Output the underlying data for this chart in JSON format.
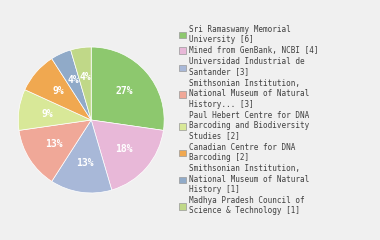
{
  "legend_labels": [
    "Sri Ramaswamy Memorial\nUniversity [6]",
    "Mined from GenBank, NCBI [4]",
    "Universidad Industrial de\nSantander [3]",
    "Smithsonian Institution,\nNational Museum of Natural\nHistory... [3]",
    "Paul Hebert Centre for DNA\nBarcoding and Biodiversity\nStudies [2]",
    "Canadian Centre for DNA\nBarcoding [2]",
    "Smithsonian Institution,\nNational Museum of Natural\nHistory [1]",
    "Madhya Pradesh Council of\nScience & Technology [1]"
  ],
  "values": [
    6,
    4,
    3,
    3,
    2,
    2,
    1,
    1
  ],
  "colors": [
    "#8dc86e",
    "#e8b8d8",
    "#a8b8d8",
    "#f0a898",
    "#d8e898",
    "#f0a850",
    "#90aac8",
    "#c0d888"
  ],
  "pct_labels": [
    "27%",
    "18%",
    "13%",
    "13%",
    "9%",
    "9%",
    "4%",
    "4%"
  ],
  "background_color": "#f0f0f0",
  "text_color": "#404040",
  "pct_fontsize": 7.0,
  "legend_fontsize": 5.5
}
